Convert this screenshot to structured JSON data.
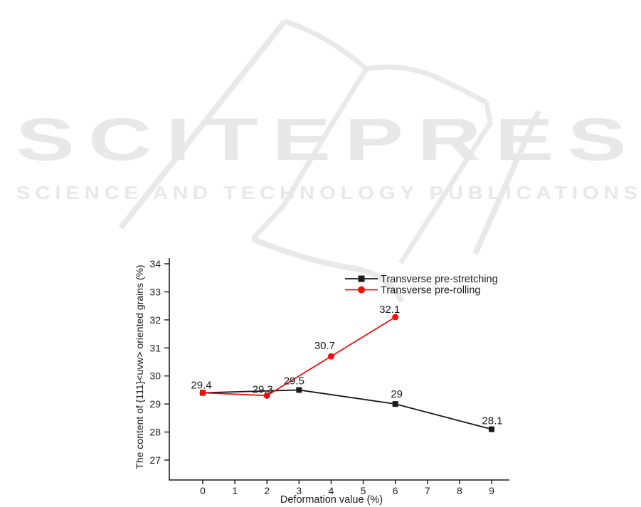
{
  "watermark": {
    "logo_text": "SCITEPRESS",
    "tagline": "SCIENCE AND TECHNOLOGY PUBLICATIONS",
    "color": "#e8e8e8"
  },
  "chart_data": {
    "type": "line",
    "title": "",
    "xlabel": "Deformation value (%)",
    "ylabel": "The content of {111}<uvw> oriented grains (%)",
    "x_ticks": [
      0,
      1,
      2,
      3,
      4,
      5,
      6,
      7,
      8,
      9
    ],
    "y_ticks": [
      27,
      28,
      29,
      30,
      31,
      32,
      33,
      34
    ],
    "xlim": [
      -1.05,
      9.55
    ],
    "ylim": [
      26.3,
      34.2
    ],
    "grid": false,
    "legend_position": "upper right inside",
    "axis_color": "#1a1a1a",
    "label_color": "#1c1c1c",
    "series": [
      {
        "name": "Transverse pre-stretching",
        "color": "#1a1a1a",
        "marker": "square",
        "x": [
          0,
          3,
          6,
          9
        ],
        "y": [
          29.4,
          29.5,
          29.0,
          28.1
        ],
        "point_labels": [
          "29.4",
          "29.5",
          "29",
          "28.1"
        ]
      },
      {
        "name": "Transverse pre-rolling",
        "color": "#f20d0d",
        "marker": "circle",
        "x": [
          0,
          2,
          4,
          6
        ],
        "y": [
          29.4,
          29.3,
          30.7,
          32.1
        ],
        "point_labels": [
          "",
          "29.3",
          "30.7",
          "32.1"
        ]
      }
    ]
  }
}
